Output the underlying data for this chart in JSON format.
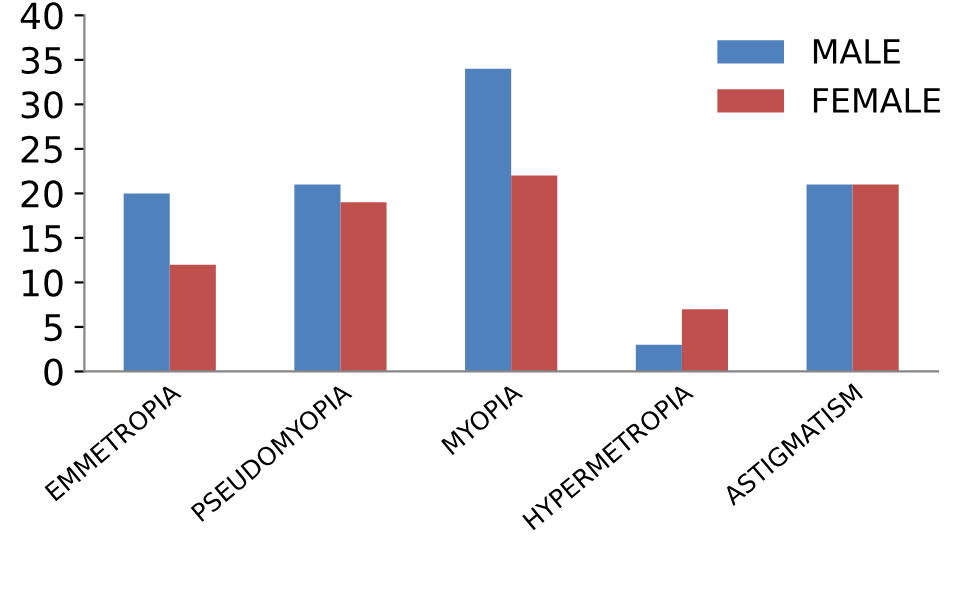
{
  "chart_data": {
    "type": "bar",
    "categories": [
      "EMMETROPIA",
      "PSEUDOMYOPIA",
      "MYOPIA",
      "HYPERMETROPIA",
      "ASTIGMATISM"
    ],
    "series": [
      {
        "name": "MALE",
        "color": "#4f81bd",
        "values": [
          20,
          21,
          34,
          3,
          21
        ]
      },
      {
        "name": "FEMALE",
        "color": "#c0504d",
        "values": [
          12,
          19,
          22,
          7,
          21
        ]
      }
    ],
    "ylim": [
      0,
      40
    ],
    "yticks": [
      0,
      5,
      10,
      15,
      20,
      25,
      30,
      35,
      40
    ],
    "grid": false,
    "legend": "top right"
  }
}
